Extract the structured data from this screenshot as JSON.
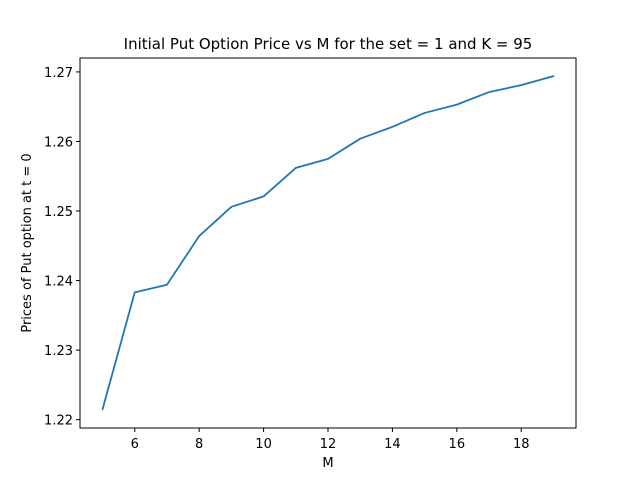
{
  "chart_data": {
    "type": "line",
    "title": "Initial Put Option Price vs M for the set = 1 and K = 95",
    "xlabel": "M",
    "ylabel": "Prices of Put option at t = 0",
    "xlim": [
      4.3,
      19.7
    ],
    "ylim": [
      1.2188,
      1.272
    ],
    "xticks": [
      "6",
      "8",
      "10",
      "12",
      "14",
      "16",
      "18"
    ],
    "yticks": [
      "1.22",
      "1.23",
      "1.24",
      "1.25",
      "1.26",
      "1.27"
    ],
    "grid": false,
    "series": [
      {
        "color": "#1f77b4",
        "x": [
          5,
          6,
          7,
          8,
          9,
          10,
          11,
          12,
          13,
          14,
          15,
          16,
          17,
          18,
          19
        ],
        "y": [
          1.2215,
          1.2383,
          1.2394,
          1.2464,
          1.2506,
          1.2521,
          1.2562,
          1.2575,
          1.2604,
          1.2621,
          1.2641,
          1.2653,
          1.2671,
          1.2681,
          1.2694
        ]
      }
    ]
  }
}
